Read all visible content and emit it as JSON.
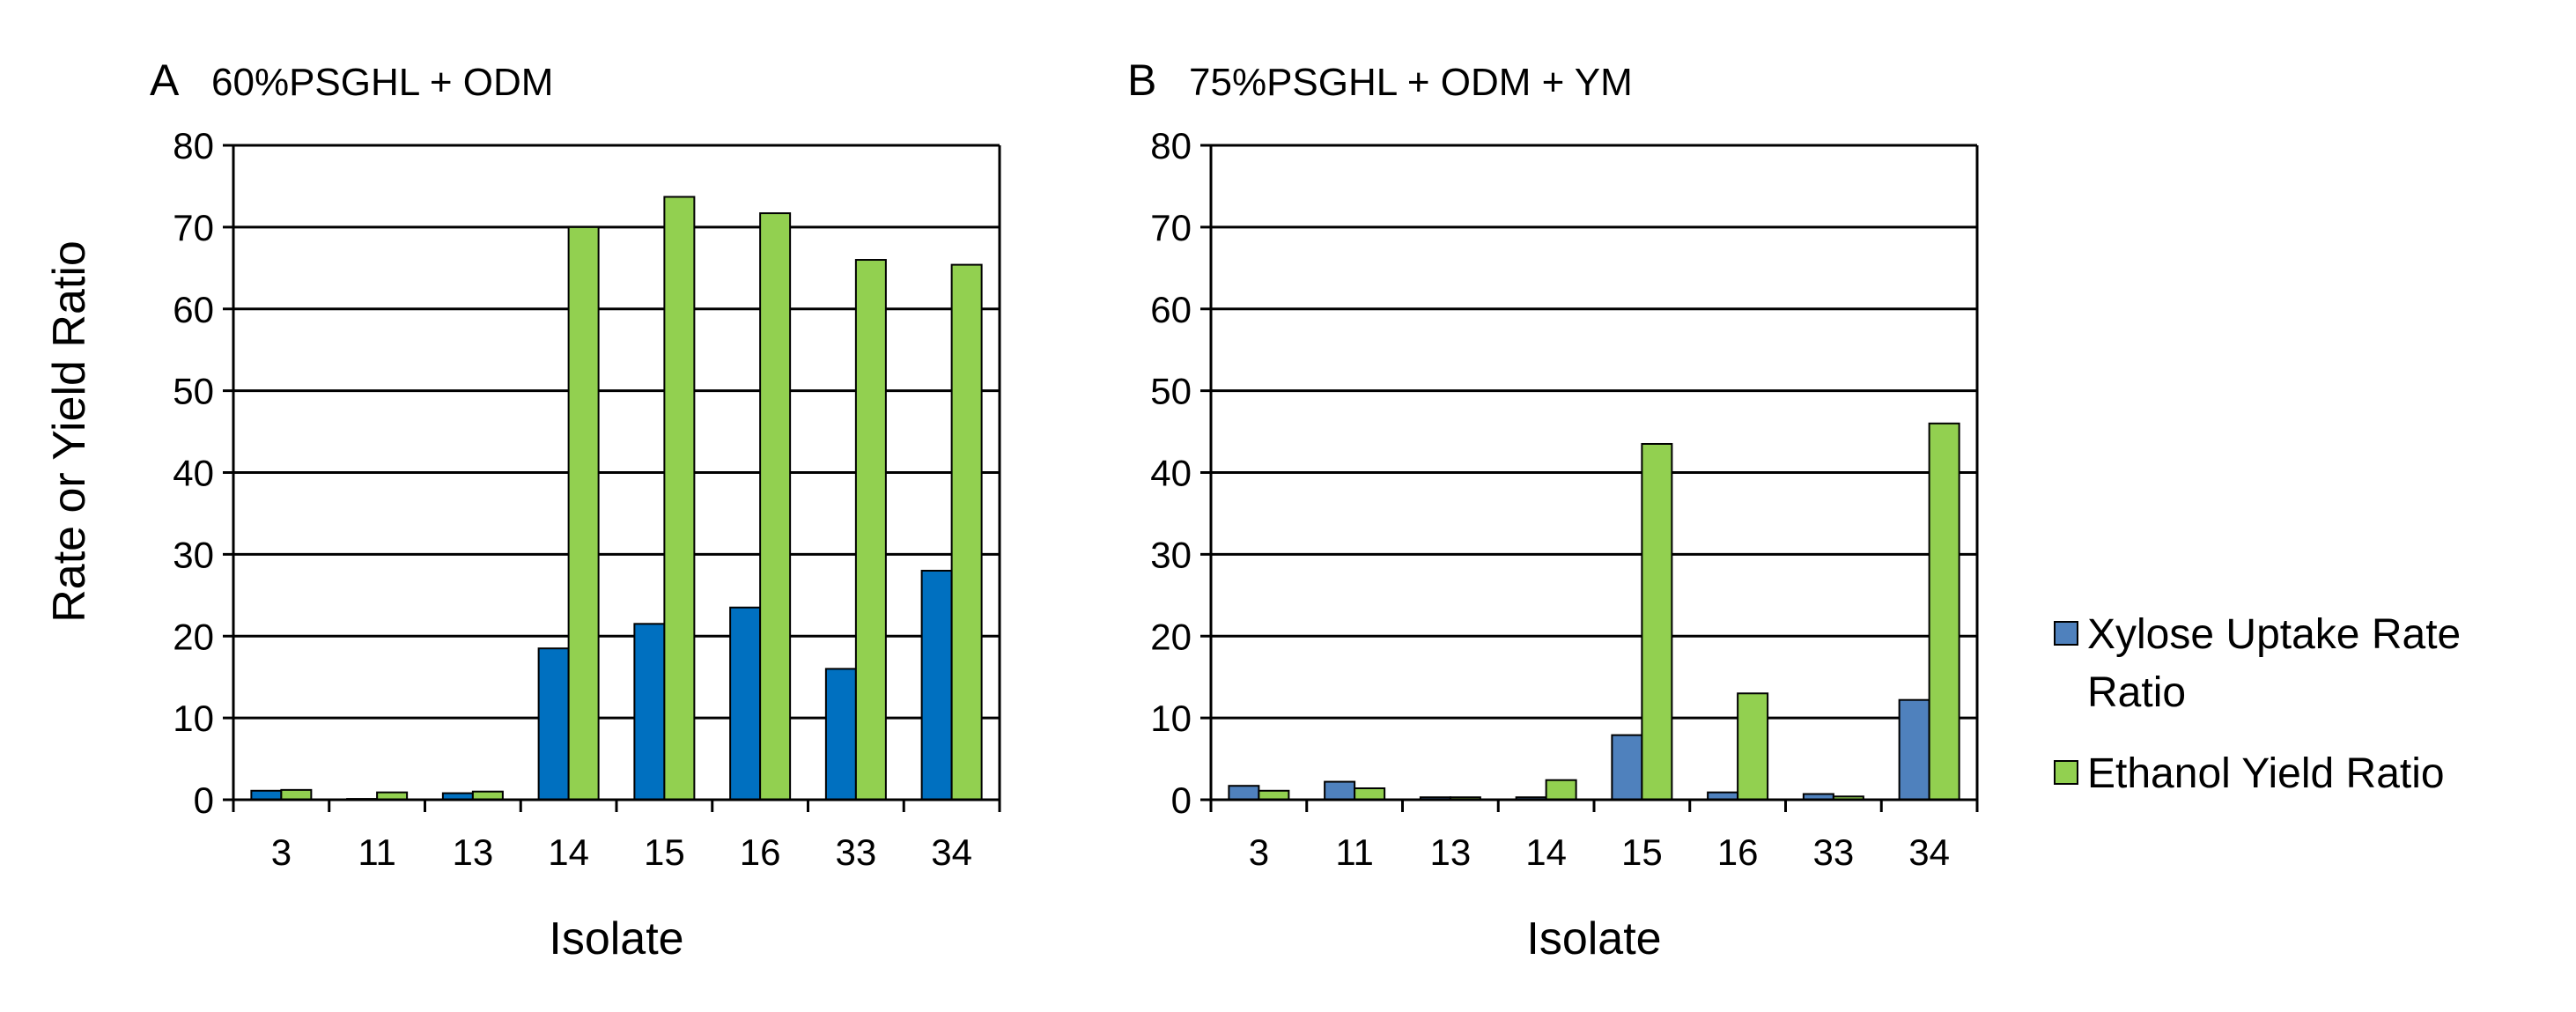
{
  "ylabel": "Rate or Yield Ratio",
  "legend": {
    "placement": "right",
    "entries": [
      {
        "line1": "Xylose Uptake Rate",
        "line2": "Ratio"
      },
      {
        "line1": "Ethanol Yield Ratio",
        "line2": ""
      }
    ]
  },
  "chart_data": [
    {
      "type": "bar",
      "panel_letter": "A",
      "title": "60%PSGHL + ODM",
      "xlabel": "Isolate",
      "ylim": [
        0,
        80
      ],
      "yticks": [
        0,
        10,
        20,
        30,
        40,
        50,
        60,
        70,
        80
      ],
      "grid": true,
      "categories": [
        "3",
        "11",
        "13",
        "14",
        "15",
        "16",
        "33",
        "34"
      ],
      "series": [
        {
          "name": "Xylose Uptake Rate Ratio",
          "color": "#0070C0",
          "values": [
            1.1,
            0.1,
            0.8,
            18.5,
            21.5,
            23.5,
            16,
            28
          ]
        },
        {
          "name": "Ethanol Yield Ratio",
          "color": "#92D050",
          "values": [
            1.2,
            0.9,
            1.0,
            70,
            73.7,
            71.7,
            66,
            65.4
          ]
        }
      ]
    },
    {
      "type": "bar",
      "panel_letter": "B",
      "title": "75%PSGHL + ODM + YM",
      "xlabel": "Isolate",
      "ylim": [
        0,
        80
      ],
      "yticks": [
        0,
        10,
        20,
        30,
        40,
        50,
        60,
        70,
        80
      ],
      "grid": true,
      "categories": [
        "3",
        "11",
        "13",
        "14",
        "15",
        "16",
        "33",
        "34"
      ],
      "series": [
        {
          "name": "Xylose Uptake Rate Ratio",
          "color": "#4F81BD",
          "values": [
            1.7,
            2.2,
            0.3,
            0.3,
            7.9,
            0.9,
            0.7,
            12.2
          ]
        },
        {
          "name": "Ethanol Yield Ratio",
          "color": "#92D050",
          "values": [
            1.1,
            1.4,
            0.3,
            2.4,
            43.5,
            13.0,
            0.4,
            46.0
          ]
        }
      ]
    }
  ]
}
